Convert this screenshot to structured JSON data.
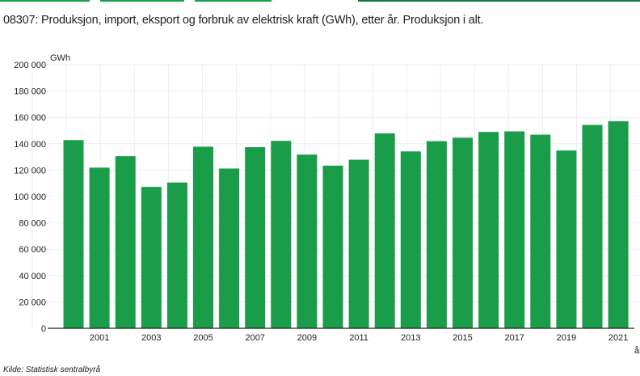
{
  "title": "08307: Produksjon, import, eksport og forbruk av elektrisk kraft (GWh), etter år. Produksjon i alt.",
  "source": "Kilde:  Statistisk sentralbyrå",
  "colors": {
    "bar": "#1a9d49",
    "tabs": "#1a9d49"
  },
  "chart_data": {
    "type": "bar",
    "title": "08307: Produksjon, import, eksport og forbruk av elektrisk kraft (GWh), etter år. Produksjon i alt.",
    "ylabel": "GWh",
    "xlabel": "år",
    "ylim": [
      0,
      200000
    ],
    "yticks": [
      0,
      20000,
      40000,
      60000,
      80000,
      100000,
      120000,
      140000,
      160000,
      180000,
      200000
    ],
    "ytick_labels": [
      "0",
      "20 000",
      "40 000",
      "60 000",
      "80 000",
      "100 000",
      "120 000",
      "140 000",
      "160 000",
      "180 000",
      "200 000"
    ],
    "grid": true,
    "categories": [
      "2000",
      "2001",
      "2002",
      "2003",
      "2004",
      "2005",
      "2006",
      "2007",
      "2008",
      "2009",
      "2010",
      "2011",
      "2012",
      "2013",
      "2014",
      "2015",
      "2016",
      "2017",
      "2018",
      "2019",
      "2020",
      "2021"
    ],
    "xtick_labels": [
      "2001",
      "2003",
      "2005",
      "2007",
      "2009",
      "2011",
      "2013",
      "2015",
      "2017",
      "2019",
      "2021"
    ],
    "values": [
      142800,
      121900,
      130600,
      107300,
      110600,
      137800,
      121200,
      137400,
      142200,
      131800,
      123400,
      127900,
      147900,
      134200,
      142000,
      144600,
      149000,
      149400,
      146900,
      134900,
      154300,
      157100
    ]
  }
}
